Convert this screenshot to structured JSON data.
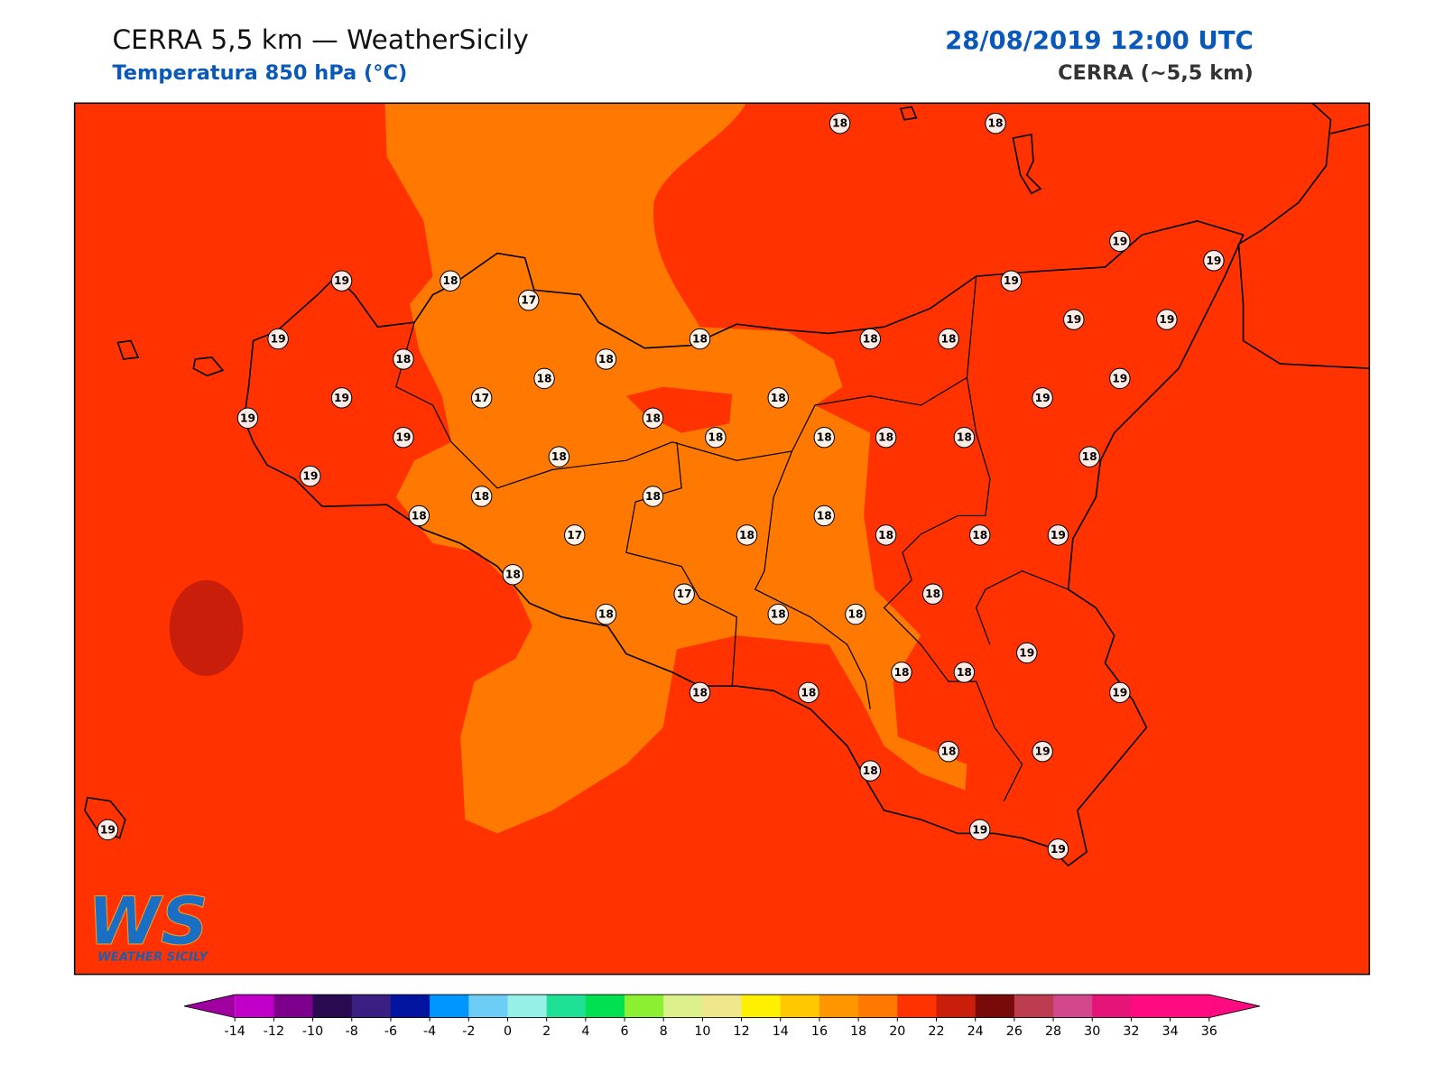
{
  "header": {
    "title": "CERRA 5,5 km — WeatherSicily",
    "subtitle": "Temperatura 850 hPa (°C)",
    "datetime": "28/08/2019 12:00 UTC",
    "model": "CERRA (~5,5 km)"
  },
  "stations": [
    18,
    18,
    19,
    19,
    19,
    18,
    17,
    19,
    19,
    18,
    18,
    18,
    19,
    19,
    18,
    18,
    18,
    19,
    19,
    17,
    18,
    19,
    19,
    18,
    19,
    18,
    18,
    18,
    18,
    18,
    18,
    19,
    18,
    18,
    18,
    18,
    17,
    18,
    18,
    18,
    19,
    18,
    17,
    18,
    18,
    18,
    18,
    19,
    18,
    18,
    18,
    18,
    19,
    18,
    19,
    18,
    19,
    19,
    19
  ],
  "colorbar": {
    "ticks": [
      -14,
      -12,
      -10,
      -8,
      -6,
      -4,
      -2,
      0,
      2,
      4,
      6,
      8,
      10,
      12,
      14,
      16,
      18,
      20,
      22,
      24,
      26,
      28,
      30,
      32,
      34,
      36
    ],
    "colors": [
      "#c000c8",
      "#7d008c",
      "#2a0a50",
      "#3a1e82",
      "#0014a0",
      "#0096ff",
      "#6ecdf5",
      "#96f0e6",
      "#1ee196",
      "#00e050",
      "#8cf032",
      "#dcf08c",
      "#f0e68c",
      "#fff000",
      "#ffc800",
      "#ff9600",
      "#ff7800",
      "#ff3200",
      "#c81e0a",
      "#780a0a",
      "#be3c50",
      "#d2468c",
      "#e61478",
      "#ff0a80",
      "#ff0a80"
    ],
    "under_color": "#a000a0",
    "over_color": "#ff0a80"
  },
  "logo": {
    "mark": "WS",
    "caption": "WEATHER SICILY"
  }
}
